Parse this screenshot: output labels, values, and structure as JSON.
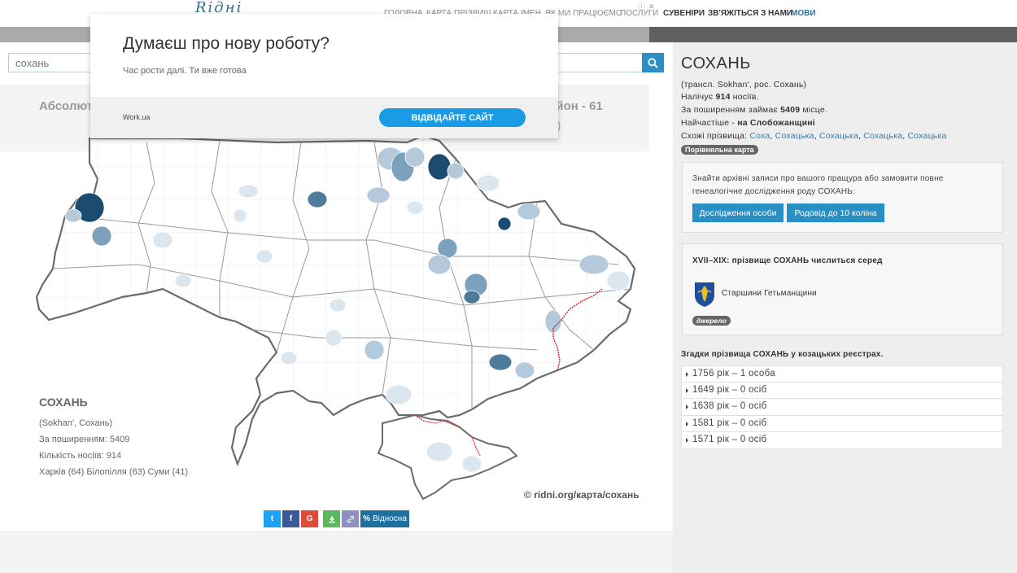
{
  "nav": {
    "logo": "Rідні",
    "menu": [
      {
        "label": "ГОЛОВНА",
        "dim": true
      },
      {
        "label": "КАРТА ПРІЗВИЩ",
        "dim": true
      },
      {
        "label": "КАРТА ІМЕН",
        "dim": true
      },
      {
        "label": "ЯК МИ ПРАЦЮЄМО",
        "dim": true
      },
      {
        "label": "ПОСЛУГИ",
        "dim": true
      },
      {
        "label": "СУВЕНІРИ",
        "dim": false
      },
      {
        "label": "ЗВ'ЯЖІТЬСЯ З НАМИ",
        "dim": false
      },
      {
        "label": "МОВИ",
        "dim": false,
        "lang": true
      }
    ]
  },
  "search": {
    "value": "сохань"
  },
  "stats": {
    "left": "Абсолют",
    "right": "айон - 61",
    "right2": "7)"
  },
  "map": {
    "caption_title": "СОХАНЬ",
    "caption_translit": "(Sokhan', Сохань)",
    "caption_rank": "За поширенням: 5409",
    "caption_count": "Кількість носіїв:  914",
    "caption_top": "Харків (64) Білопілля (63) Суми (41)",
    "watermark": "© ridni.org/карта/сохань",
    "colors": {
      "light": "#dbe6ee",
      "mid": "#b4cadb",
      "strong": "#7ba1bd",
      "dark": "#4e7a9c",
      "darkest": "#1b4b6e"
    }
  },
  "share": {
    "twitter": {
      "icon": "twitter-icon",
      "color": "#1da1f2",
      "glyph": "t"
    },
    "facebook": {
      "icon": "facebook-icon",
      "color": "#3b5998",
      "glyph": "f"
    },
    "google": {
      "icon": "google-icon",
      "color": "#dd4b39",
      "glyph": "G"
    },
    "download": {
      "icon": "download-icon",
      "color": "#5cb85c"
    },
    "link": {
      "icon": "link-icon",
      "color": "#8f8fc2"
    },
    "relative": {
      "icon": "percent-icon",
      "color": "#1f6f9f",
      "label": "Відносна"
    }
  },
  "surname": {
    "title": "СОХАНЬ",
    "translit": "(трансл. Sokhan', рос. Сохань)",
    "carriers_pre": "Налічує ",
    "carriers_val": "914",
    "carriers_post": " носіїв.",
    "rank_pre": "За поширенням займає ",
    "rank_val": "5409",
    "rank_post": " місце.",
    "region_pre": "Найчастіше - ",
    "region_val": "на Слобожанщині",
    "similar_label": "Схожі прізвища: ",
    "similar": [
      "Соха",
      "Сохацька",
      "Сохацька",
      "Сохацька",
      "Сохацька"
    ],
    "compare_badge": "Порівняльна карта"
  },
  "research": {
    "text": "Знайти архівні записи про вашого пращура або замовити повне генеалогічне дослідження роду СОХАНЬ:",
    "btn_person": "Дослідження особи",
    "btn_tree": "Родовід до 10 коліна"
  },
  "history": {
    "title": "XVII–XIX: прізвище СОХАНЬ числиться серед",
    "item": "Старшини Гетьманщини",
    "source": "джерело"
  },
  "registers": {
    "title": "Згадки прізвища СОХАНЬ у козацьких реєстрах.",
    "rows": [
      "1756 рік – 1 особа",
      "1649 рік – 0 осіб",
      "1638 рік – 0 осіб",
      "1581 рік – 0 осіб",
      "1571 рік – 0 осіб"
    ]
  },
  "ad": {
    "title": "Думаєш про нову роботу?",
    "subtitle": "Час рости далі. Ти вже готова",
    "brand": "Work.ua",
    "button": "ВІДВІДАЙТЕ САЙТ",
    "adchoices": "ⓘ",
    "close": "✕"
  }
}
